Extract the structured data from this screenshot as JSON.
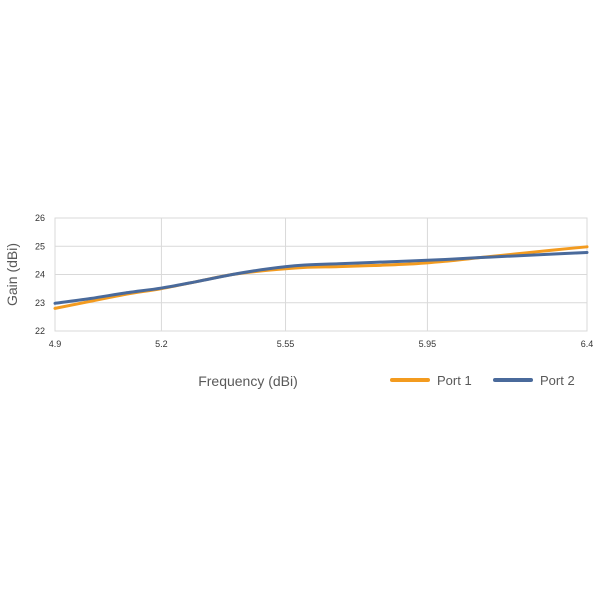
{
  "chart_data": {
    "type": "line",
    "title": "",
    "xlabel": "Frequency (dBi)",
    "ylabel": "Gain (dBi)",
    "x_ticks": [
      "4.9",
      "5.2",
      "5.55",
      "5.95",
      "6.4"
    ],
    "x_tick_values": [
      4.9,
      5.2,
      5.55,
      5.95,
      6.4
    ],
    "y_ticks": [
      "22",
      "23",
      "24",
      "25",
      "26"
    ],
    "xlim": [
      4.9,
      6.4
    ],
    "ylim": [
      22,
      26
    ],
    "grid": true,
    "legend_position": "bottom-right",
    "series": [
      {
        "name": "Port 1",
        "color": "#f39b1f",
        "points": [
          [
            4.9,
            22.8
          ],
          [
            5.0,
            23.05
          ],
          [
            5.1,
            23.3
          ],
          [
            5.2,
            23.5
          ],
          [
            5.3,
            23.75
          ],
          [
            5.4,
            24.0
          ],
          [
            5.5,
            24.15
          ],
          [
            5.6,
            24.25
          ],
          [
            5.7,
            24.28
          ],
          [
            5.8,
            24.32
          ],
          [
            5.9,
            24.37
          ],
          [
            6.0,
            24.47
          ],
          [
            6.1,
            24.6
          ],
          [
            6.2,
            24.73
          ],
          [
            6.3,
            24.86
          ],
          [
            6.4,
            24.98
          ]
        ]
      },
      {
        "name": "Port 2",
        "color": "#4a6a9b",
        "points": [
          [
            4.9,
            22.98
          ],
          [
            5.0,
            23.15
          ],
          [
            5.1,
            23.35
          ],
          [
            5.2,
            23.52
          ],
          [
            5.3,
            23.75
          ],
          [
            5.4,
            24.0
          ],
          [
            5.5,
            24.2
          ],
          [
            5.6,
            24.33
          ],
          [
            5.7,
            24.38
          ],
          [
            5.8,
            24.43
          ],
          [
            5.9,
            24.48
          ],
          [
            6.0,
            24.53
          ],
          [
            6.1,
            24.6
          ],
          [
            6.2,
            24.66
          ],
          [
            6.3,
            24.72
          ],
          [
            6.4,
            24.78
          ]
        ]
      }
    ]
  }
}
